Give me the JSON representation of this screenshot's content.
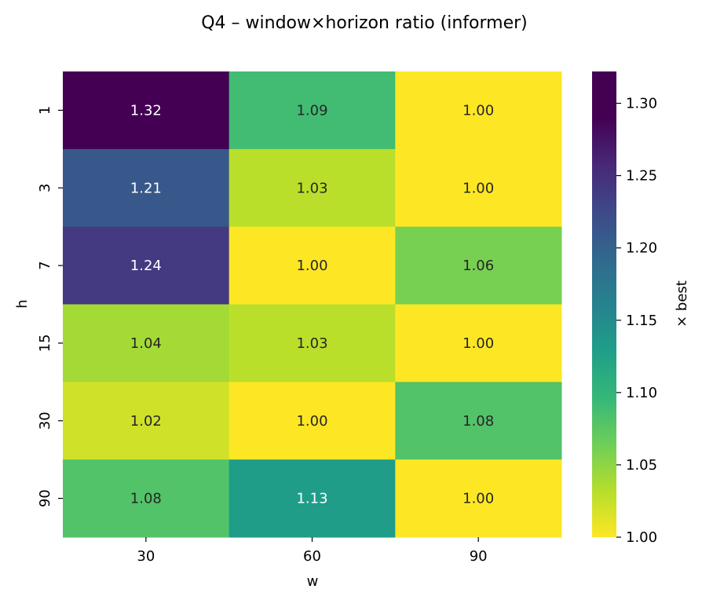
{
  "chart_data": {
    "type": "heatmap",
    "title": "Q4 – window×horizon ratio (informer)",
    "xlabel": "w",
    "ylabel": "h",
    "x_categories": [
      "30",
      "60",
      "90"
    ],
    "y_categories": [
      "1",
      "3",
      "7",
      "15",
      "30",
      "90"
    ],
    "values": [
      [
        1.32,
        1.09,
        1.0
      ],
      [
        1.21,
        1.03,
        1.0
      ],
      [
        1.24,
        1.0,
        1.06
      ],
      [
        1.04,
        1.03,
        1.0
      ],
      [
        1.02,
        1.0,
        1.08
      ],
      [
        1.08,
        1.13,
        1.0
      ]
    ],
    "cell_labels": [
      [
        "1.32",
        "1.09",
        "1.00"
      ],
      [
        "1.21",
        "1.03",
        "1.00"
      ],
      [
        "1.24",
        "1.00",
        "1.06"
      ],
      [
        "1.04",
        "1.03",
        "1.00"
      ],
      [
        "1.02",
        "1.00",
        "1.08"
      ],
      [
        "1.08",
        "1.13",
        "1.00"
      ]
    ],
    "colormap": "viridis_r",
    "vmin": 1.0,
    "vmax": 1.322,
    "colorbar": {
      "label": "× best",
      "ticks": [
        1.0,
        1.05,
        1.1,
        1.15,
        1.2,
        1.25,
        1.3
      ],
      "tick_labels": [
        "1.00",
        "1.05",
        "1.10",
        "1.15",
        "1.20",
        "1.25",
        "1.30"
      ]
    },
    "grid": false
  }
}
